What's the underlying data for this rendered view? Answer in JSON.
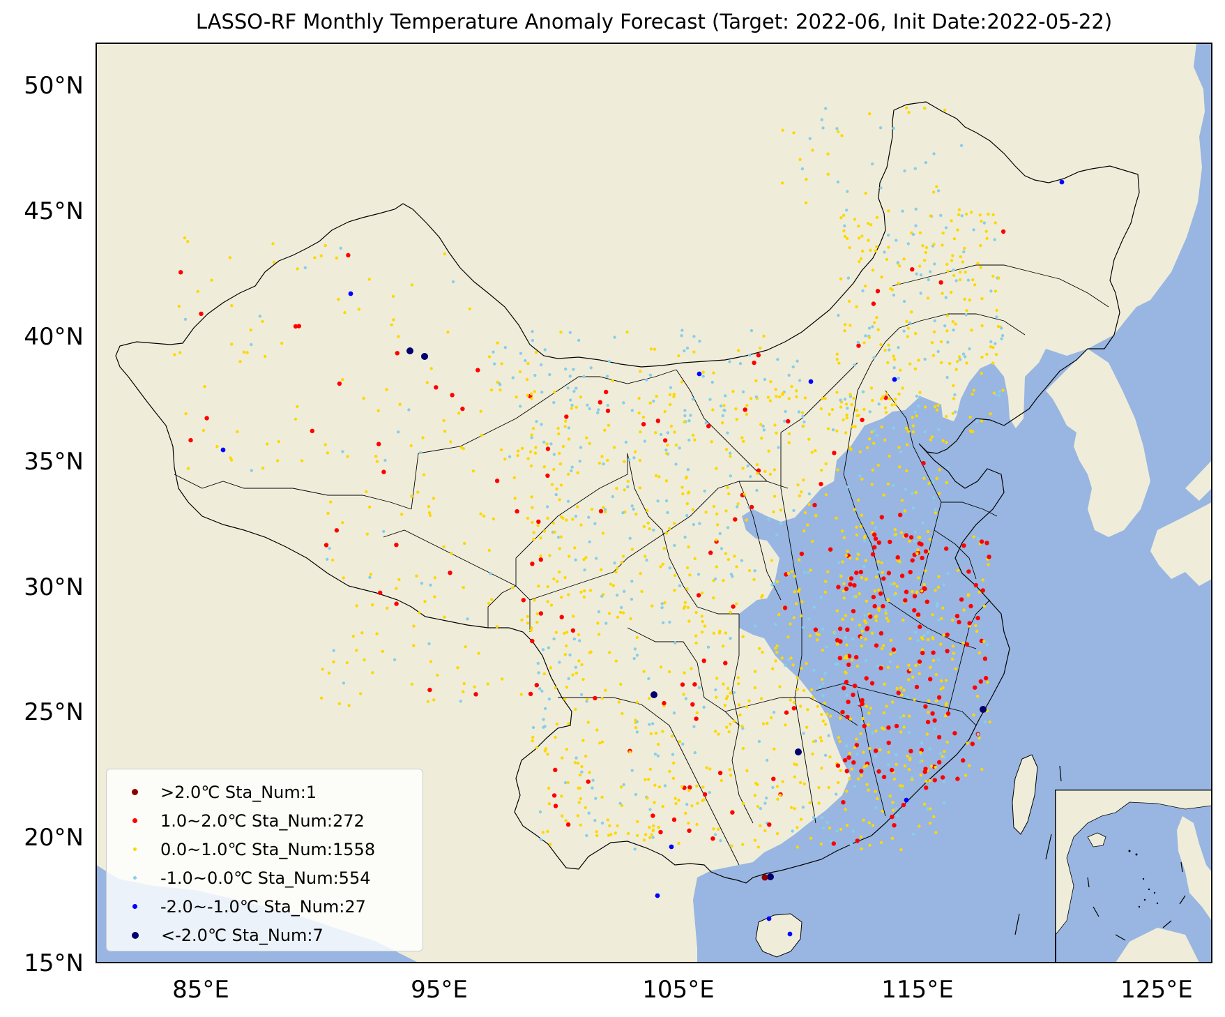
{
  "title": "LASSO-RF Monthly Temperature Anomaly Forecast (Target: 2022-06, Init Date:2022-05-22)",
  "colors": {
    "land": "#efedd9",
    "ocean": "#98b6e1",
    "border": "#000000",
    "frame": "#000000"
  },
  "axes": {
    "lon_ticks": [
      "85°E",
      "95°E",
      "105°E",
      "115°E",
      "125°E"
    ],
    "lat_ticks": [
      "15°N",
      "20°N",
      "25°N",
      "30°N",
      "35°N",
      "40°N",
      "45°N",
      "50°N"
    ],
    "lon_range": [
      81,
      128
    ],
    "lat_range": [
      15,
      51.5
    ]
  },
  "legend": {
    "placement": "lower-left",
    "items": [
      {
        "label": ">2.0℃ Sta_Num:1",
        "color": "#8b0000"
      },
      {
        "label": "1.0~2.0℃ Sta_Num:272",
        "color": "#ff0000"
      },
      {
        "label": "0.0~1.0℃ Sta_Num:1558",
        "color": "#ffd700"
      },
      {
        "label": "-1.0~0.0℃ Sta_Num:554",
        "color": "#87ceeb"
      },
      {
        "label": "-2.0~-1.0℃ Sta_Num:27",
        "color": "#0000ff"
      },
      {
        "label": "<-2.0℃ Sta_Num:7",
        "color": "#00006e"
      }
    ]
  },
  "inset": {
    "description_visible": false
  }
}
